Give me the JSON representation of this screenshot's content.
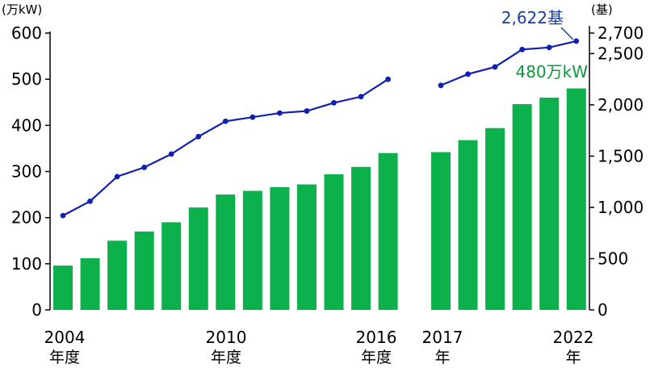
{
  "chart_data": {
    "type": "bar+line",
    "left_unit": "(万kW)",
    "right_unit": "(基)",
    "left_ticks": [
      "0",
      "100",
      "200",
      "300",
      "400",
      "500",
      "600"
    ],
    "right_ticks": [
      "0",
      "500",
      "1,000",
      "1,500",
      "2,000",
      "2,500",
      "2,700"
    ],
    "ylim_left": [
      0,
      600
    ],
    "ylim_right": [
      0,
      2700
    ],
    "groups": [
      {
        "bars_left": [
          96,
          112,
          150,
          170,
          190,
          222,
          250,
          258,
          266,
          272,
          294,
          310,
          340
        ],
        "line_right": [
          920,
          1060,
          1300,
          1390,
          1520,
          1690,
          1840,
          1880,
          1920,
          1940,
          2020,
          2080,
          2250
        ]
      },
      {
        "bars_left": [
          342,
          368,
          394,
          446,
          460,
          480
        ],
        "line_right": [
          2190,
          2300,
          2370,
          2540,
          2560,
          2622
        ]
      }
    ],
    "x_labels": [
      {
        "year": "2004",
        "unit": "年度"
      },
      {
        "year": "2010",
        "unit": "年度"
      },
      {
        "year": "2016",
        "unit": "年度"
      },
      {
        "year": "2017",
        "unit": "年"
      },
      {
        "year": "2022",
        "unit": "年"
      }
    ],
    "annotations": {
      "line_last": "2,622基",
      "bar_last": "480万kW"
    },
    "colors": {
      "bar": "#0db14b",
      "line": "#1020b0",
      "annotation_line": "#1a3e9a",
      "annotation_bar": "#0a9a3c",
      "axis": "#000000"
    }
  }
}
